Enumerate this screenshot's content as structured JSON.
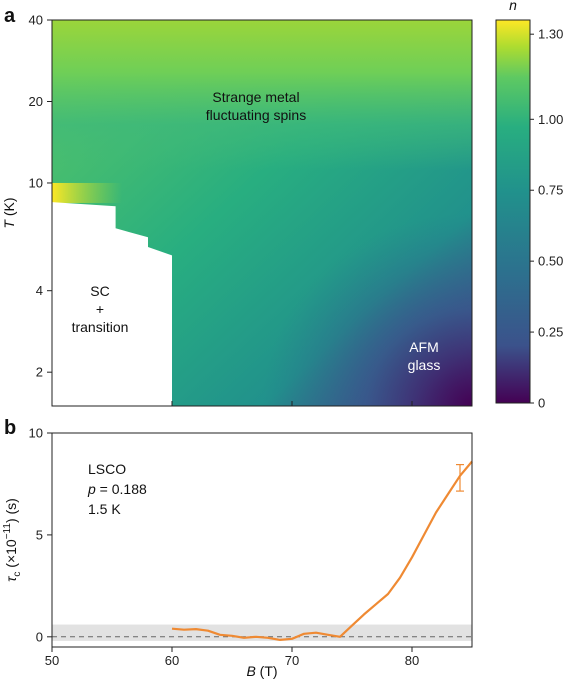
{
  "chart_data": [
    {
      "panel": "a",
      "type": "heatmap",
      "xlim": [
        50,
        85
      ],
      "ylim": [
        1.5,
        40
      ],
      "y_scale": "log",
      "ylabel_symbol": "T",
      "ylabel_unit": " (K)",
      "yticks": [
        2,
        4,
        10,
        20,
        40
      ],
      "colorbar": {
        "label": "n",
        "range": [
          0,
          1.35
        ],
        "ticks": [
          0,
          0.25,
          0.5,
          0.75,
          1.0,
          1.3
        ],
        "tick_labels": [
          "0",
          "0.25",
          "0.50",
          "0.75",
          "1.00",
          "1.30"
        ]
      },
      "regions": [
        {
          "label": "Strange metal\nfluctuating spins",
          "B": 67,
          "T": 18
        },
        {
          "label": "SC\n+\ntransition",
          "B": 54,
          "T": 3.5
        },
        {
          "label": "AFM\nglass",
          "B": 81,
          "T": 2.2
        }
      ],
      "sc_boundary": [
        [
          50,
          8.5
        ],
        [
          55.3,
          8.2
        ],
        [
          55.3,
          6.8
        ],
        [
          58,
          6.3
        ],
        [
          58,
          5.8
        ],
        [
          60,
          5.4
        ],
        [
          60,
          1.5
        ]
      ]
    },
    {
      "panel": "b",
      "type": "line",
      "xlim": [
        50,
        85
      ],
      "ylim": [
        -0.5,
        10
      ],
      "xticks": [
        50,
        60,
        70,
        80
      ],
      "yticks": [
        0,
        5,
        10
      ],
      "xlabel_symbol": "B",
      "xlabel_unit": " (T)",
      "ylabel_symbol": "τ",
      "ylabel_sub": "c",
      "ylabel_unit": " (×10",
      "ylabel_exp": "−11",
      "ylabel_tail": ") (s)",
      "annotation": [
        "LSCO",
        "p = 0.188",
        "1.5 K"
      ],
      "noise_band": [
        -0.2,
        0.6
      ],
      "error_bar": {
        "x": 84,
        "y": 7.8,
        "err": 0.65
      },
      "series": [
        {
          "x": [
            60,
            61,
            62,
            63,
            64,
            65,
            66,
            67,
            68,
            69,
            70,
            71,
            72,
            73,
            74,
            75,
            76,
            77,
            78,
            79,
            80,
            81,
            82,
            83,
            84,
            85
          ],
          "y": [
            0.4,
            0.35,
            0.38,
            0.3,
            0.1,
            0.05,
            -0.05,
            0.0,
            -0.05,
            -0.15,
            -0.1,
            0.15,
            0.2,
            0.1,
            0.0,
            0.55,
            1.1,
            1.6,
            2.1,
            2.9,
            3.9,
            5.0,
            6.1,
            7.0,
            7.9,
            8.6
          ]
        }
      ]
    }
  ]
}
